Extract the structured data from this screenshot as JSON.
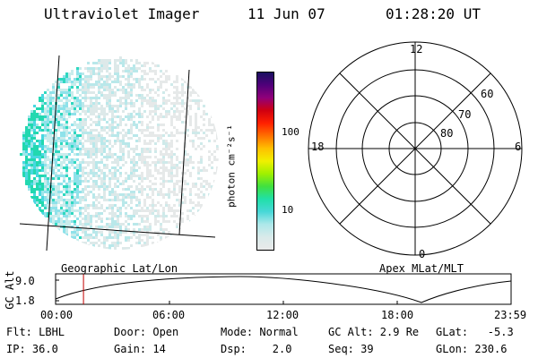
{
  "header": {
    "instrument": "Ultraviolet Imager",
    "date": "11 Jun 07",
    "time": "01:28:20 UT"
  },
  "colorbar": {
    "label": "photon cm⁻²s⁻¹",
    "ticks": [
      "100",
      "10"
    ],
    "colors": [
      "#e9eaea",
      "#d9eaea",
      "#aee8ea",
      "#48d8d8",
      "#20e0a8",
      "#40e040",
      "#a0f000",
      "#f0f000",
      "#ffc000",
      "#ff7000",
      "#ff2000",
      "#d00010",
      "#90007a",
      "#50007a",
      "#1a1060"
    ]
  },
  "polar": {
    "mlt_labels": [
      "12",
      "18",
      "6",
      "0"
    ],
    "lat_labels": [
      "60",
      "70",
      "80"
    ]
  },
  "orbit": {
    "ylabel": "GC Alt",
    "yticks": [
      "9.0",
      "1.8"
    ],
    "left_title": "Geographic Lat/Lon",
    "right_title": "Apex MLat/MLT",
    "xticks": [
      "00:00",
      "06:00",
      "12:00",
      "18:00",
      "23:59"
    ],
    "marker_time_hours": 1.47
  },
  "footer": {
    "flt": "Flt: LBHL",
    "ip": "IP: 36.0",
    "door": "Door: Open",
    "gain": "Gain: 14",
    "mode": "Mode: Normal",
    "dsp": "Dsp:    2.0",
    "gcalt": "GC Alt: 2.9 Re",
    "seq": "Seq: 39",
    "glat": "GLat:   -5.3",
    "glon": "GLon: 230.6"
  }
}
